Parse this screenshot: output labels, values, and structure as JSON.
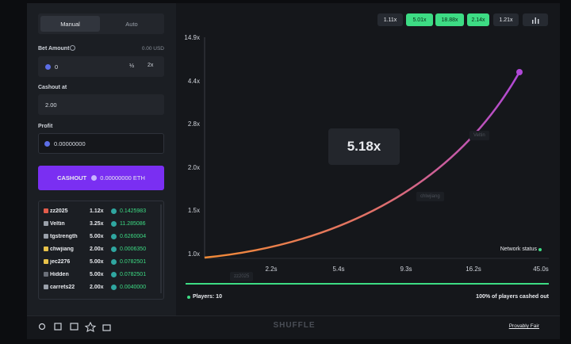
{
  "sidebar": {
    "tabs": [
      "Manual",
      "Auto"
    ],
    "bet_amount": {
      "label": "Bet Amount",
      "balance": "0.00 USD",
      "value": "0",
      "half": "½",
      "double": "2x"
    },
    "cashout_at": {
      "label": "Cashout at",
      "value": "2.00"
    },
    "profit": {
      "label": "Profit",
      "value": "0.00000000"
    },
    "button": {
      "label": "CASHOUT",
      "amount": "0.00000000 ETH"
    },
    "players": [
      [
        "zz2025",
        "1.12x",
        "0.1425983"
      ],
      [
        "Veltin",
        "3.25x",
        "11.285086"
      ],
      [
        "tgstrength",
        "5.00x",
        "0.6260004"
      ],
      [
        "chwjiang",
        "2.00x",
        "0.0006350"
      ],
      [
        "jec2276",
        "5.00x",
        "0.0782501"
      ],
      [
        "Hidden",
        "5.00x",
        "0.0782501"
      ],
      [
        "carrets22",
        "2.00x",
        "0.0040000"
      ]
    ]
  },
  "history": [
    {
      "label": "1.11x",
      "color": "#262a31"
    },
    {
      "label": "5.01x",
      "color": "#3ddc84"
    },
    {
      "label": "18.88x",
      "color": "#3ddc84"
    },
    {
      "label": "2.14x",
      "color": "#3ddc84"
    },
    {
      "label": "1.21x",
      "color": "#262a31"
    }
  ],
  "graph": {
    "y_labels": [
      "14.9x",
      "4.4x",
      "2.8x",
      "2.0x",
      "1.5x",
      "1.0x"
    ],
    "x_labels": [
      "2.2s",
      "5.4s",
      "9.3s",
      "16.2s",
      "45.0s"
    ],
    "current": "5.18x",
    "ghosts": [
      "Veltin",
      "chlwjiang",
      "zz2025"
    ],
    "network_status": "Network status"
  },
  "stats": {
    "players": "Players: 10",
    "cashed_out": "100% of players cashed out"
  },
  "footer": {
    "logo": "SHUFFLE",
    "provably_fair": "Provably Fair"
  }
}
